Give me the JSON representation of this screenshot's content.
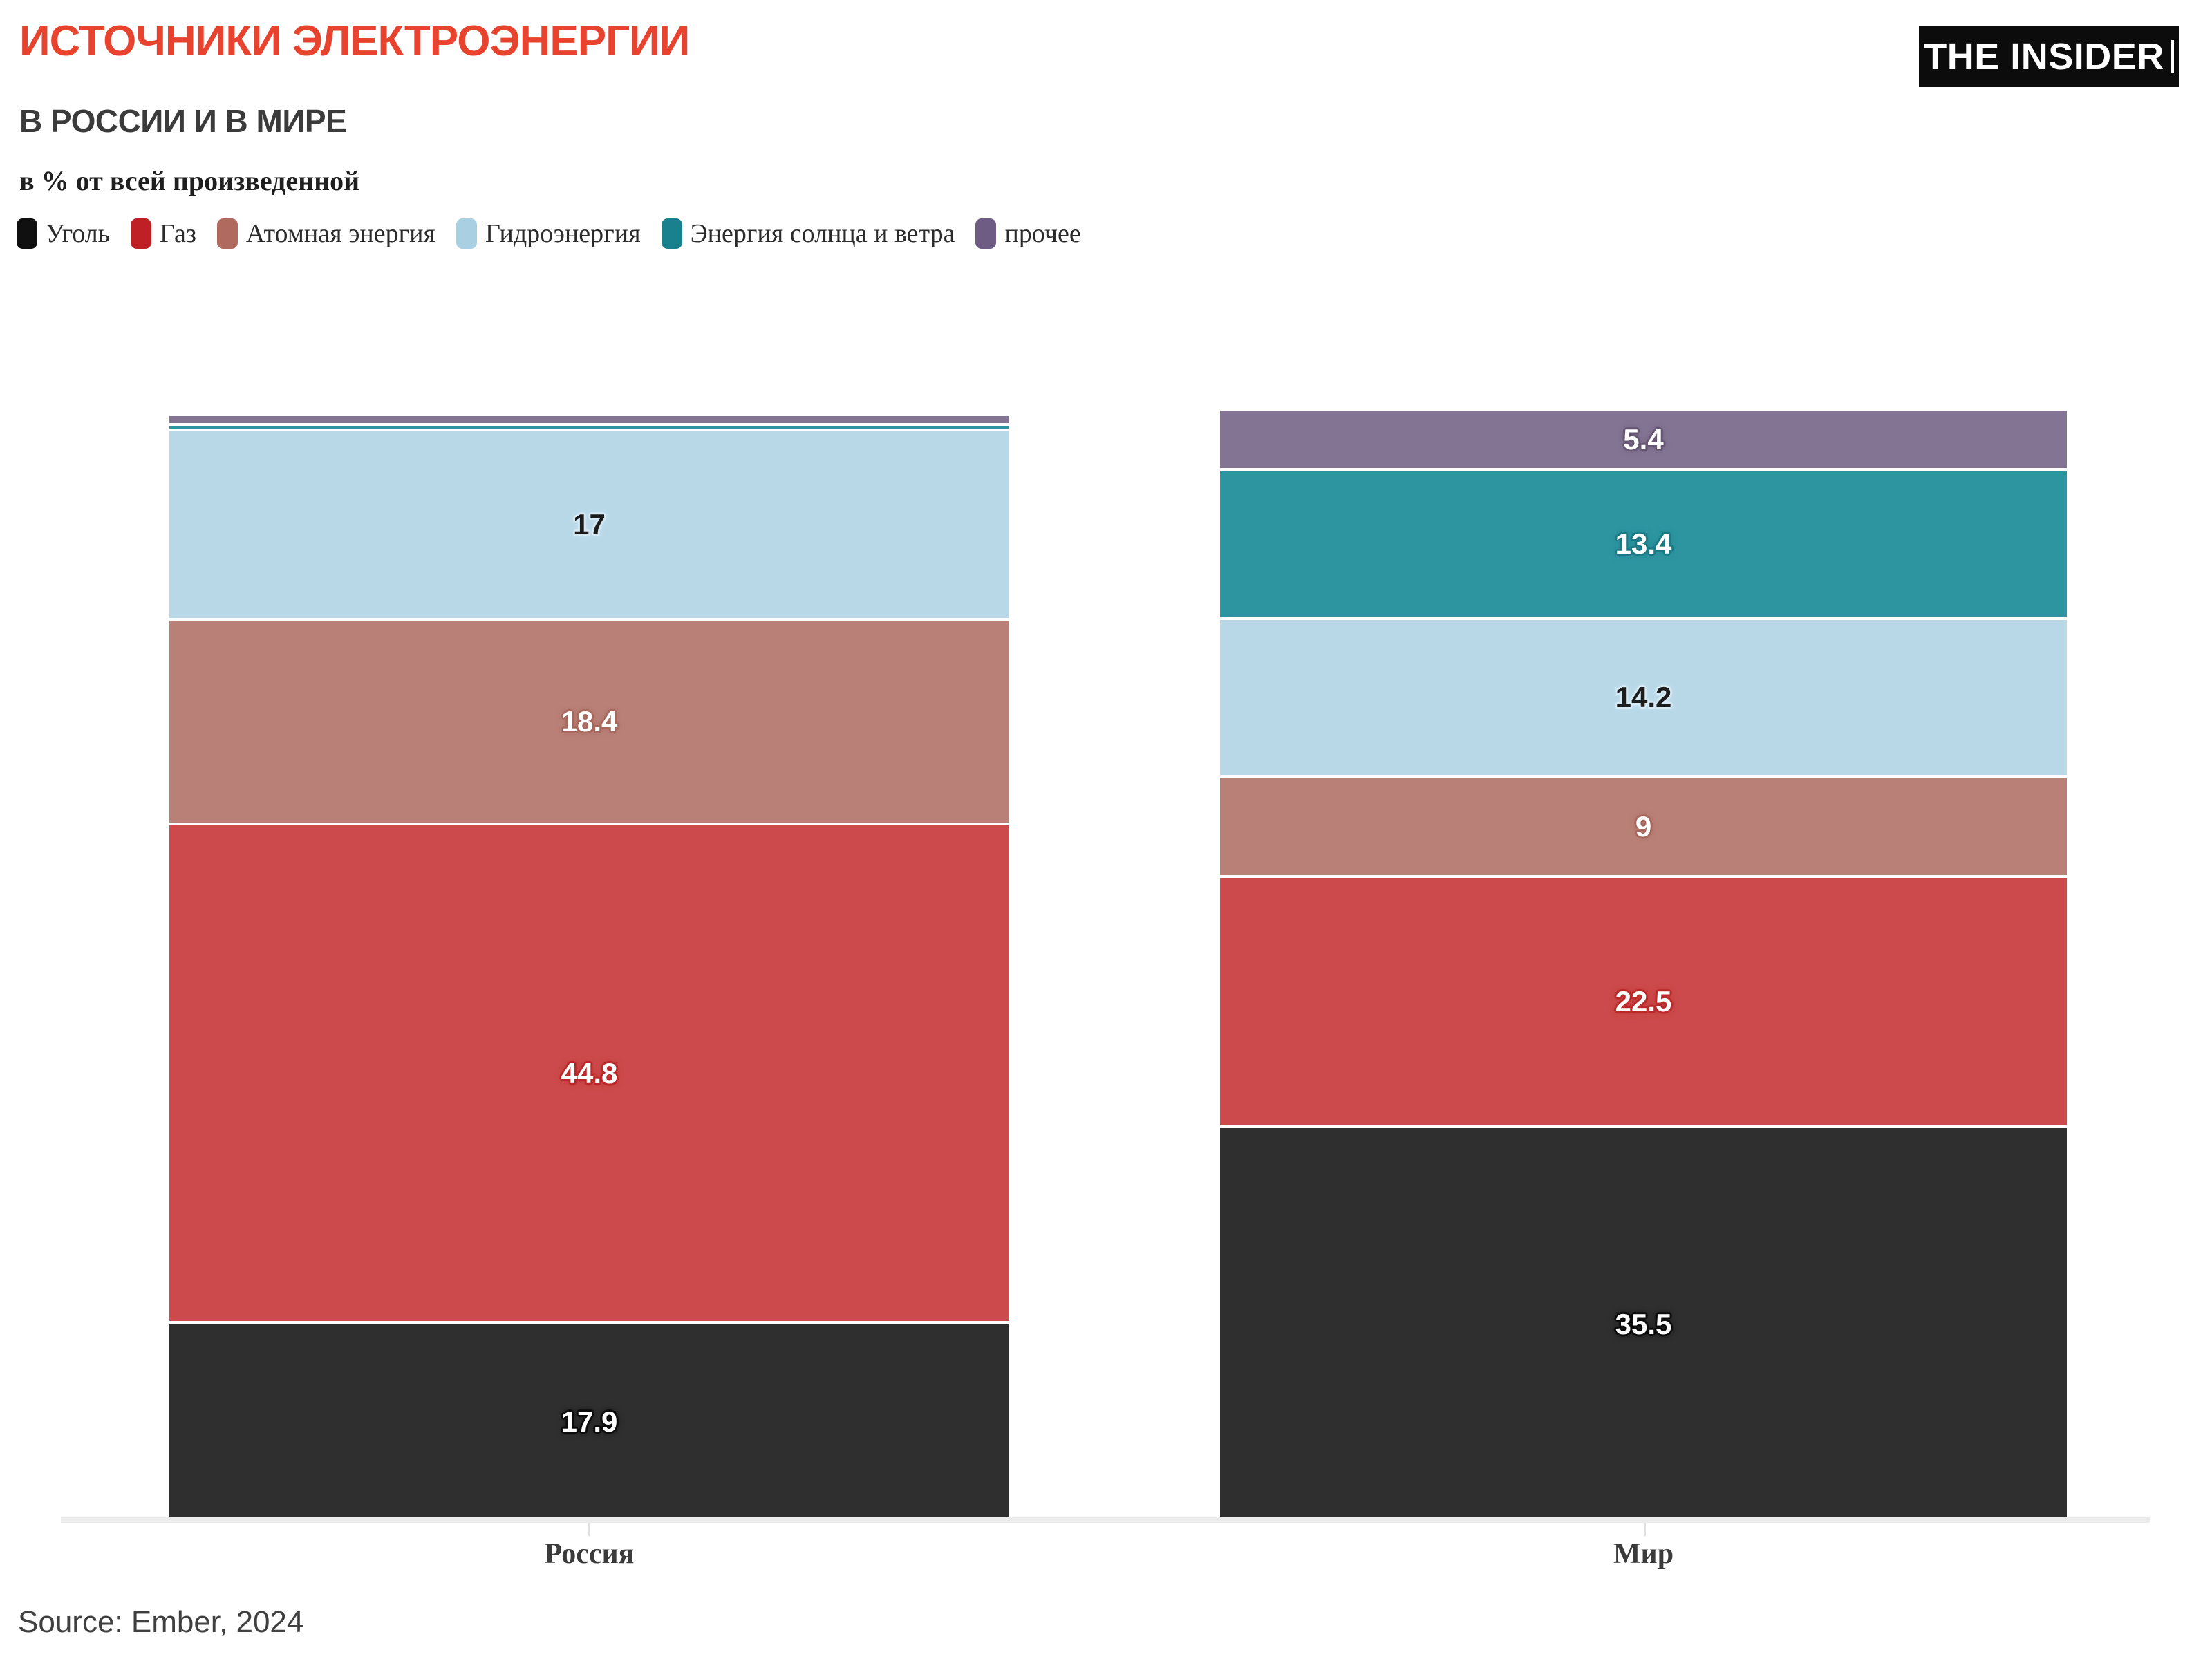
{
  "header": {
    "title": "ИСТОЧНИКИ ЭЛЕКТРОЭНЕРГИИ",
    "subtitle": "В РОССИИ И В МИРЕ",
    "units": "в % от всей произведенной",
    "brand": "THE INSIDER"
  },
  "footer": {
    "source": "Source: Ember, 2024"
  },
  "colors": {
    "title_accent": "#E8432F",
    "subtitle_text": "#3B3B3B",
    "axis_line": "#ECECEC",
    "tick": "#E0E0E0",
    "background": "#FFFFFF",
    "logo_bg": "#0C0C0C",
    "logo_text": "#FFFFFF"
  },
  "chart_data": {
    "type": "bar",
    "stacked": true,
    "title": "ИСТОЧНИКИ ЭЛЕКТРОЭНЕРГИИ В РОССИИ И В МИРЕ",
    "ylabel": "% от всей произведенной",
    "ylim": [
      0,
      100
    ],
    "grid": false,
    "legend_position": "top",
    "categories": [
      "Россия",
      "Мир"
    ],
    "series": [
      {
        "name": "Уголь",
        "bar_color": "#2F2F2F",
        "swatch_color": "#101010",
        "label_color": "#FFFFFF",
        "halo_color": "#0E0E0E",
        "values": [
          17.9,
          35.5
        ],
        "labels": [
          "17.9",
          "35.5"
        ]
      },
      {
        "name": "Газ",
        "bar_color": "#CC4A4B",
        "swatch_color": "#BF2026",
        "label_color": "#FFFFFF",
        "halo_color": "#BB2B2B",
        "values": [
          44.8,
          22.5
        ],
        "labels": [
          "44.8",
          "22.5"
        ]
      },
      {
        "name": "Атомная энергия",
        "bar_color": "#B98077",
        "swatch_color": "#B06A5E",
        "label_color": "#FFFFFF",
        "halo_color": "#A8695E",
        "values": [
          18.4,
          9
        ],
        "labels": [
          "18.4",
          "9"
        ]
      },
      {
        "name": "Гидроэнергия",
        "bar_color": "#B8D8E8",
        "swatch_color": "#A9CFE2",
        "label_color": "#1C1C1C",
        "halo_color": "#D5E9F3",
        "values": [
          17,
          14.2
        ],
        "labels": [
          "17",
          "14.2"
        ]
      },
      {
        "name": "Энергия солнца и ветра",
        "bar_color": "#2D95A0",
        "swatch_color": "#19808D",
        "label_color": "#FFFFFF",
        "halo_color": "#1D7B86",
        "values": [
          0.5,
          13.4
        ],
        "labels": [
          "",
          "13.4"
        ]
      },
      {
        "name": "прочее",
        "bar_color": "#837494",
        "swatch_color": "#6E5C85",
        "label_color": "#FFFFFF",
        "halo_color": "#675875",
        "values": [
          0.9,
          5.4
        ],
        "labels": [
          "",
          "5.4"
        ]
      }
    ]
  }
}
